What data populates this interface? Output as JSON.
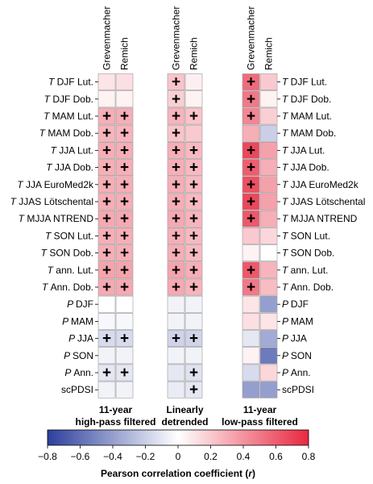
{
  "chart_data": {
    "type": "heatmap",
    "colorbar": {
      "label": "Pearson correlation coefficient (r)",
      "ticks": [
        "-0.8",
        "-0.6",
        "-0.4",
        "-0.2",
        "0",
        "0.2",
        "0.4",
        "0.6",
        "0.8"
      ],
      "range": [
        -0.8,
        0.8
      ],
      "colors": {
        "negative": "#2b3f9e",
        "zero": "#ffffff",
        "positive": "#e8283f"
      }
    },
    "rows": [
      {
        "prefix": "T",
        "label": "DJF Lut."
      },
      {
        "prefix": "T",
        "label": "DJF Dob."
      },
      {
        "prefix": "T",
        "label": "MAM Lut."
      },
      {
        "prefix": "T",
        "label": "MAM Dob."
      },
      {
        "prefix": "T",
        "label": "JJA Lut."
      },
      {
        "prefix": "T",
        "label": "JJA Dob."
      },
      {
        "prefix": "T",
        "label": "JJA EuroMed2k"
      },
      {
        "prefix": "T",
        "label": "JJAS Lötschental"
      },
      {
        "prefix": "T",
        "label": "MJJA NTREND"
      },
      {
        "prefix": "T",
        "label": "SON Lut."
      },
      {
        "prefix": "T",
        "label": "SON Dob."
      },
      {
        "prefix": "T",
        "label": "ann. Lut."
      },
      {
        "prefix": "T",
        "label": "Ann. Dob."
      },
      {
        "prefix": "P",
        "label": "DJF"
      },
      {
        "prefix": "P",
        "label": "MAM"
      },
      {
        "prefix": "P",
        "label": "JJA"
      },
      {
        "prefix": "P",
        "label": "SON"
      },
      {
        "prefix": "P",
        "label": "Ann."
      },
      {
        "prefix": "",
        "label": "scPDSI"
      }
    ],
    "columns": [
      "Grevenmacher",
      "Remich"
    ],
    "panels": [
      {
        "title_line1": "11-year",
        "title_line2": "high-pass filtered",
        "values": [
          [
            0.1,
            0.12
          ],
          [
            0.05,
            0.05
          ],
          [
            0.3,
            0.3
          ],
          [
            0.28,
            0.28
          ],
          [
            0.3,
            0.3
          ],
          [
            0.3,
            0.3
          ],
          [
            0.3,
            0.3
          ],
          [
            0.3,
            0.3
          ],
          [
            0.32,
            0.32
          ],
          [
            0.3,
            0.3
          ],
          [
            0.3,
            0.3
          ],
          [
            0.34,
            0.34
          ],
          [
            0.32,
            0.32
          ],
          [
            0.0,
            0.0
          ],
          [
            -0.03,
            -0.03
          ],
          [
            -0.15,
            -0.15
          ],
          [
            -0.05,
            -0.05
          ],
          [
            -0.1,
            -0.1
          ],
          [
            -0.05,
            -0.05
          ]
        ],
        "significant": [
          [
            false,
            false
          ],
          [
            false,
            false
          ],
          [
            true,
            true
          ],
          [
            true,
            true
          ],
          [
            true,
            true
          ],
          [
            true,
            true
          ],
          [
            true,
            true
          ],
          [
            true,
            true
          ],
          [
            true,
            true
          ],
          [
            true,
            true
          ],
          [
            true,
            true
          ],
          [
            true,
            true
          ],
          [
            true,
            true
          ],
          [
            false,
            false
          ],
          [
            false,
            false
          ],
          [
            true,
            true
          ],
          [
            false,
            false
          ],
          [
            true,
            true
          ],
          [
            false,
            false
          ]
        ]
      },
      {
        "title_line1": "Linearly",
        "title_line2": "detrended",
        "values": [
          [
            0.22,
            0.06
          ],
          [
            0.18,
            0.05
          ],
          [
            0.28,
            0.22
          ],
          [
            0.22,
            0.2
          ],
          [
            0.3,
            0.26
          ],
          [
            0.3,
            0.26
          ],
          [
            0.3,
            0.26
          ],
          [
            0.3,
            0.26
          ],
          [
            0.32,
            0.28
          ],
          [
            0.3,
            0.26
          ],
          [
            0.3,
            0.26
          ],
          [
            0.34,
            0.3
          ],
          [
            0.32,
            0.28
          ],
          [
            -0.05,
            -0.05
          ],
          [
            -0.05,
            -0.05
          ],
          [
            -0.18,
            -0.18
          ],
          [
            -0.05,
            -0.05
          ],
          [
            -0.1,
            -0.12
          ],
          [
            -0.08,
            -0.1
          ]
        ],
        "significant": [
          [
            true,
            false
          ],
          [
            true,
            false
          ],
          [
            true,
            true
          ],
          [
            true,
            false
          ],
          [
            true,
            true
          ],
          [
            true,
            true
          ],
          [
            true,
            true
          ],
          [
            true,
            true
          ],
          [
            true,
            true
          ],
          [
            true,
            true
          ],
          [
            true,
            true
          ],
          [
            true,
            true
          ],
          [
            true,
            true
          ],
          [
            false,
            false
          ],
          [
            false,
            false
          ],
          [
            true,
            true
          ],
          [
            false,
            false
          ],
          [
            false,
            true
          ],
          [
            false,
            true
          ]
        ]
      },
      {
        "title_line1": "11-year",
        "title_line2": "low-pass filtered",
        "values": [
          [
            0.55,
            0.2
          ],
          [
            0.5,
            0.05
          ],
          [
            0.45,
            0.18
          ],
          [
            0.3,
            -0.2
          ],
          [
            0.68,
            0.35
          ],
          [
            0.6,
            0.3
          ],
          [
            0.65,
            0.35
          ],
          [
            0.68,
            0.35
          ],
          [
            0.62,
            0.3
          ],
          [
            0.2,
            0.15
          ],
          [
            0.05,
            0.0
          ],
          [
            0.62,
            0.28
          ],
          [
            0.5,
            0.25
          ],
          [
            0.1,
            -0.4
          ],
          [
            0.12,
            0.1
          ],
          [
            -0.1,
            -0.35
          ],
          [
            0.05,
            -0.55
          ],
          [
            -0.15,
            0.15
          ],
          [
            -0.4,
            -0.4
          ]
        ],
        "significant": [
          [
            true,
            false
          ],
          [
            true,
            false
          ],
          [
            true,
            false
          ],
          [
            false,
            false
          ],
          [
            true,
            false
          ],
          [
            true,
            false
          ],
          [
            true,
            false
          ],
          [
            true,
            false
          ],
          [
            true,
            false
          ],
          [
            false,
            false
          ],
          [
            false,
            false
          ],
          [
            true,
            false
          ],
          [
            true,
            false
          ],
          [
            false,
            false
          ],
          [
            false,
            false
          ],
          [
            false,
            false
          ],
          [
            false,
            false
          ],
          [
            false,
            false
          ],
          [
            false,
            false
          ]
        ]
      }
    ]
  }
}
